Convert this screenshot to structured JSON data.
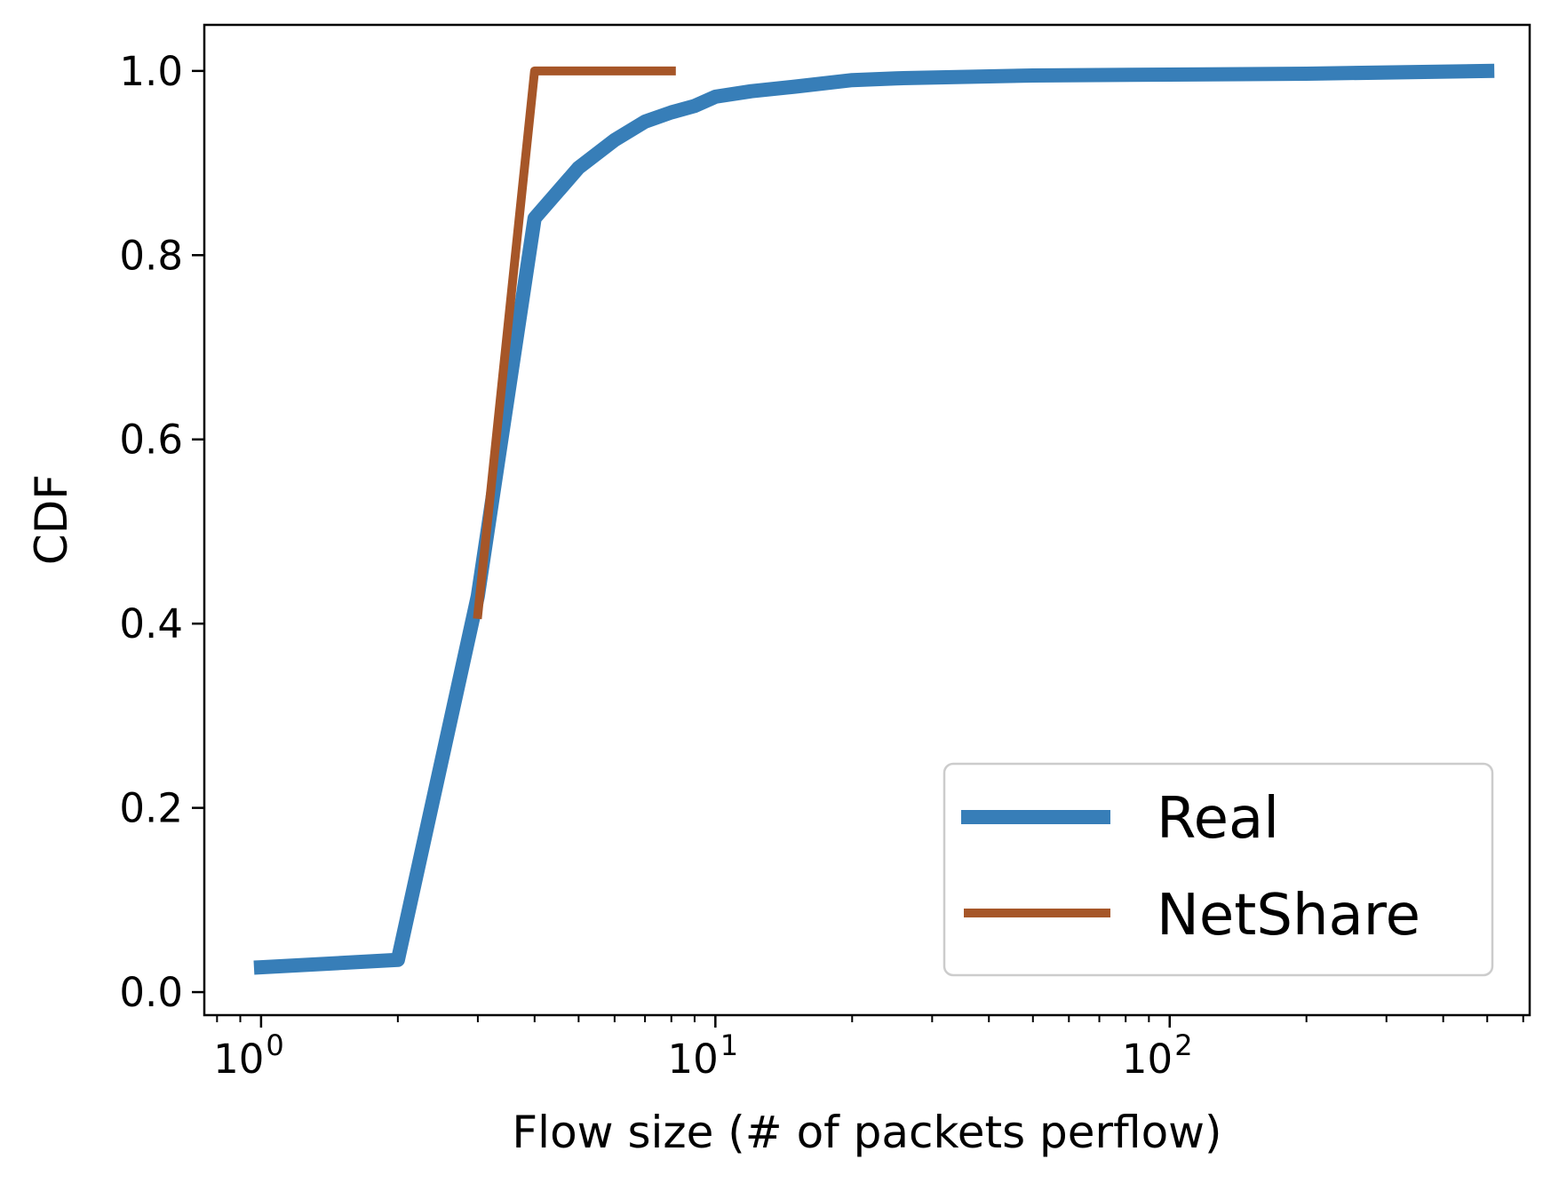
{
  "chart_data": {
    "type": "line",
    "xscale": "log",
    "xlim": [
      0.75,
      620
    ],
    "ylim": [
      -0.025,
      1.05
    ],
    "xlabel": "Flow size (# of packets perflow)",
    "ylabel": "CDF",
    "grid": false,
    "legend_position": "lower right",
    "x_ticks": [
      {
        "value": 1,
        "base": "10",
        "exp": "0"
      },
      {
        "value": 10,
        "base": "10",
        "exp": "1"
      },
      {
        "value": 100,
        "base": "10",
        "exp": "2"
      }
    ],
    "y_ticks": [
      {
        "value": 0.0,
        "label": "0.0"
      },
      {
        "value": 0.2,
        "label": "0.2"
      },
      {
        "value": 0.4,
        "label": "0.4"
      },
      {
        "value": 0.6,
        "label": "0.6"
      },
      {
        "value": 0.8,
        "label": "0.8"
      },
      {
        "value": 1.0,
        "label": "1.0"
      }
    ],
    "series": [
      {
        "name": "Real",
        "color": "#377eb8",
        "x": [
          1,
          2,
          3,
          4,
          5,
          6,
          7,
          8,
          9,
          10,
          12,
          15,
          20,
          25,
          50,
          100,
          200,
          500
        ],
        "y": [
          0.027,
          0.035,
          0.43,
          0.84,
          0.895,
          0.925,
          0.945,
          0.955,
          0.962,
          0.972,
          0.978,
          0.983,
          0.99,
          0.992,
          0.995,
          0.996,
          0.997,
          1.0
        ]
      },
      {
        "name": "NetShare",
        "color": "#a65628",
        "x": [
          3,
          4,
          8
        ],
        "y": [
          0.41,
          1.0,
          1.0
        ]
      }
    ]
  }
}
